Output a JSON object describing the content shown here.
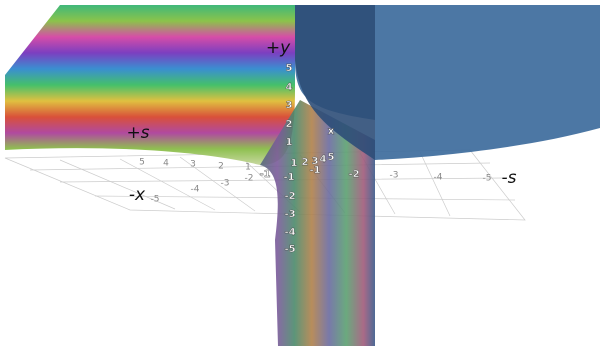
{
  "axes": {
    "y_pos": "+y",
    "s_pos": "+s",
    "s_neg": "-s",
    "x_neg": "-x",
    "x_marker": "x"
  },
  "y_ticks": [
    "5",
    "4",
    "3",
    "2",
    "1",
    "-1",
    "-2",
    "-3",
    "-4",
    "-5"
  ],
  "s_ticks_back": [
    "5",
    "4",
    "3",
    "2",
    "1"
  ],
  "s_ticks_front": [
    "1",
    "2",
    "3",
    "4",
    "5"
  ],
  "s_ticks_right": [
    "-1",
    "-2",
    "-3",
    "-4",
    "-5"
  ],
  "x_ticks": [
    "-5",
    "-4",
    "-3",
    "-2",
    "-1"
  ]
}
